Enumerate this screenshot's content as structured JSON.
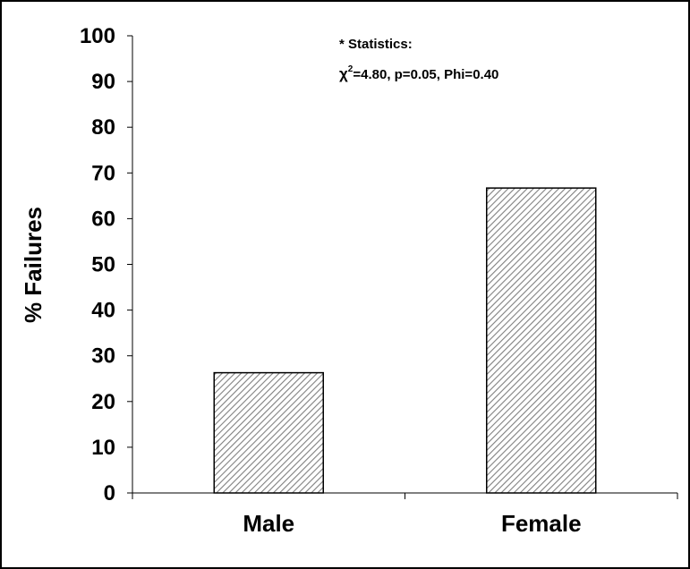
{
  "chart_data": {
    "type": "bar",
    "categories": [
      "Male",
      "Female"
    ],
    "values": [
      26.3,
      66.7
    ],
    "ylabel": "% Failures",
    "xlabel": "",
    "ylim": [
      0,
      100
    ],
    "yticks": [
      0,
      10,
      20,
      30,
      40,
      50,
      60,
      70,
      80,
      90,
      100
    ],
    "grid": false,
    "bar_fill": "diagonal-hatch",
    "colors": {
      "bar_stroke": "#000000",
      "hatch": "#808080",
      "background": "#ffffff"
    },
    "annotation": {
      "title": "* Statistics:",
      "chi_symbol": "χ",
      "chi_exponent": "2",
      "stats": "=4.80, p=0.05, Phi=0.40"
    }
  }
}
